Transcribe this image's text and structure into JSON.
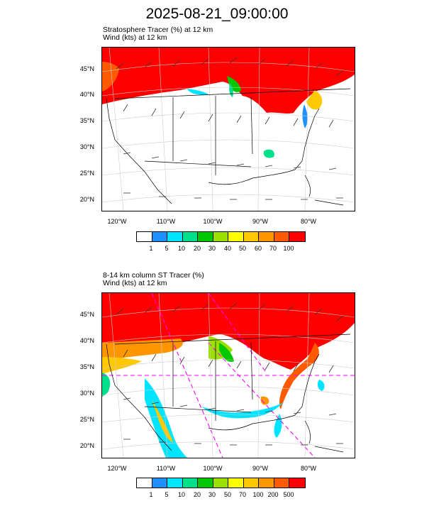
{
  "title": "2025-08-21_09:00:00",
  "panels": [
    {
      "line1": "Stratosphere Tracer   (%)     at   12 km",
      "line2": "Wind   (kts)     at   12 km",
      "lat_labels": [
        "45°N",
        "40°N",
        "35°N",
        "30°N",
        "25°N",
        "20°N"
      ],
      "lon_labels": [
        "120°W",
        "110°W",
        "100°W",
        "90°W",
        "80°W"
      ],
      "colorbar_colors": [
        "#ffffff",
        "#1e90ff",
        "#00e5ff",
        "#00e08a",
        "#00c800",
        "#9be000",
        "#ffff00",
        "#ffc800",
        "#ff9600",
        "#ff5a00",
        "#ff0000"
      ],
      "colorbar_labels": [
        "1",
        "5",
        "10",
        "20",
        "30",
        "40",
        "50",
        "60",
        "70",
        "100"
      ]
    },
    {
      "line1": "8-14 km column ST Tracer    (%)",
      "line2": "Wind   (kts)     at   12 km",
      "lat_labels": [
        "45°N",
        "40°N",
        "35°N",
        "30°N",
        "25°N",
        "20°N"
      ],
      "lon_labels": [
        "120°W",
        "110°W",
        "100°W",
        "90°W",
        "80°W"
      ],
      "colorbar_colors": [
        "#ffffff",
        "#1e90ff",
        "#00e5ff",
        "#00e08a",
        "#00c800",
        "#9be000",
        "#ffff00",
        "#ffc800",
        "#ff9600",
        "#ff5a00",
        "#ff0000"
      ],
      "colorbar_labels": [
        "1",
        "5",
        "10",
        "20",
        "30",
        "50",
        "70",
        "100",
        "200",
        "500"
      ]
    }
  ]
}
